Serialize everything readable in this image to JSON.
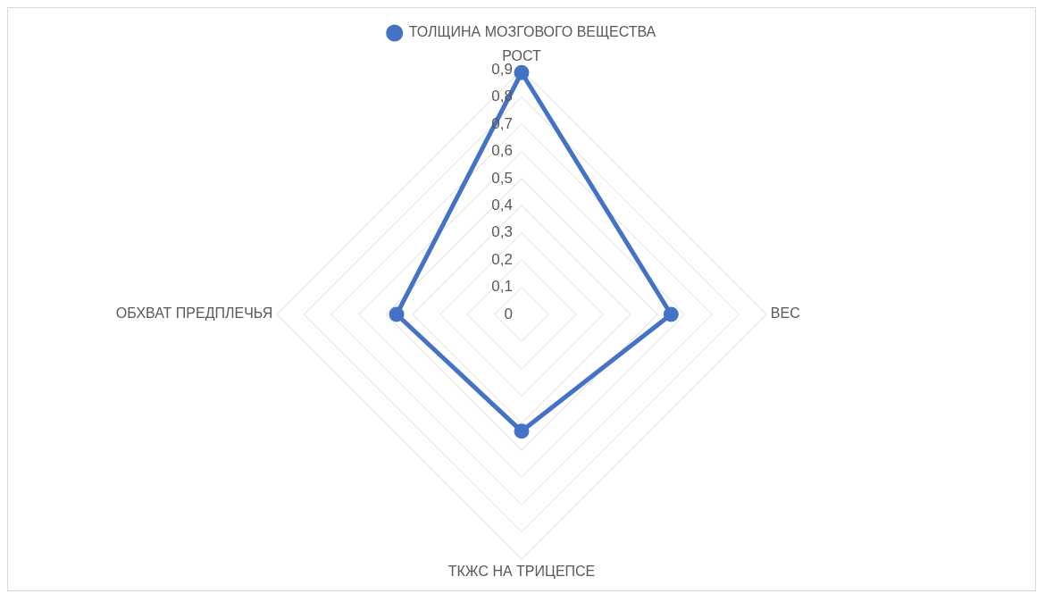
{
  "chart_data": {
    "type": "radar",
    "categories": [
      "РОСТ",
      "ВЕС",
      "ТКЖС НА ТРИЦЕПСЕ",
      "ОБХВАТ ПРЕДПЛЕЧЬЯ"
    ],
    "series": [
      {
        "name": "ТОЛЩИНА МОЗГОВОГО ВЕЩЕСТВА",
        "color": "#4472c4",
        "values": [
          0.89,
          0.55,
          0.43,
          0.46
        ]
      }
    ],
    "ylim": [
      0,
      0.9
    ],
    "yticks": [
      {
        "value": 0,
        "label": "0"
      },
      {
        "value": 0.1,
        "label": "0,1"
      },
      {
        "value": 0.2,
        "label": "0,2"
      },
      {
        "value": 0.3,
        "label": "0,3"
      },
      {
        "value": 0.4,
        "label": "0,4"
      },
      {
        "value": 0.5,
        "label": "0,5"
      },
      {
        "value": 0.6,
        "label": "0,6"
      },
      {
        "value": 0.7,
        "label": "0,7"
      },
      {
        "value": 0.8,
        "label": "0,8"
      },
      {
        "value": 0.9,
        "label": "0,9"
      }
    ],
    "grid": true,
    "legend": "top",
    "marker": "circle"
  }
}
